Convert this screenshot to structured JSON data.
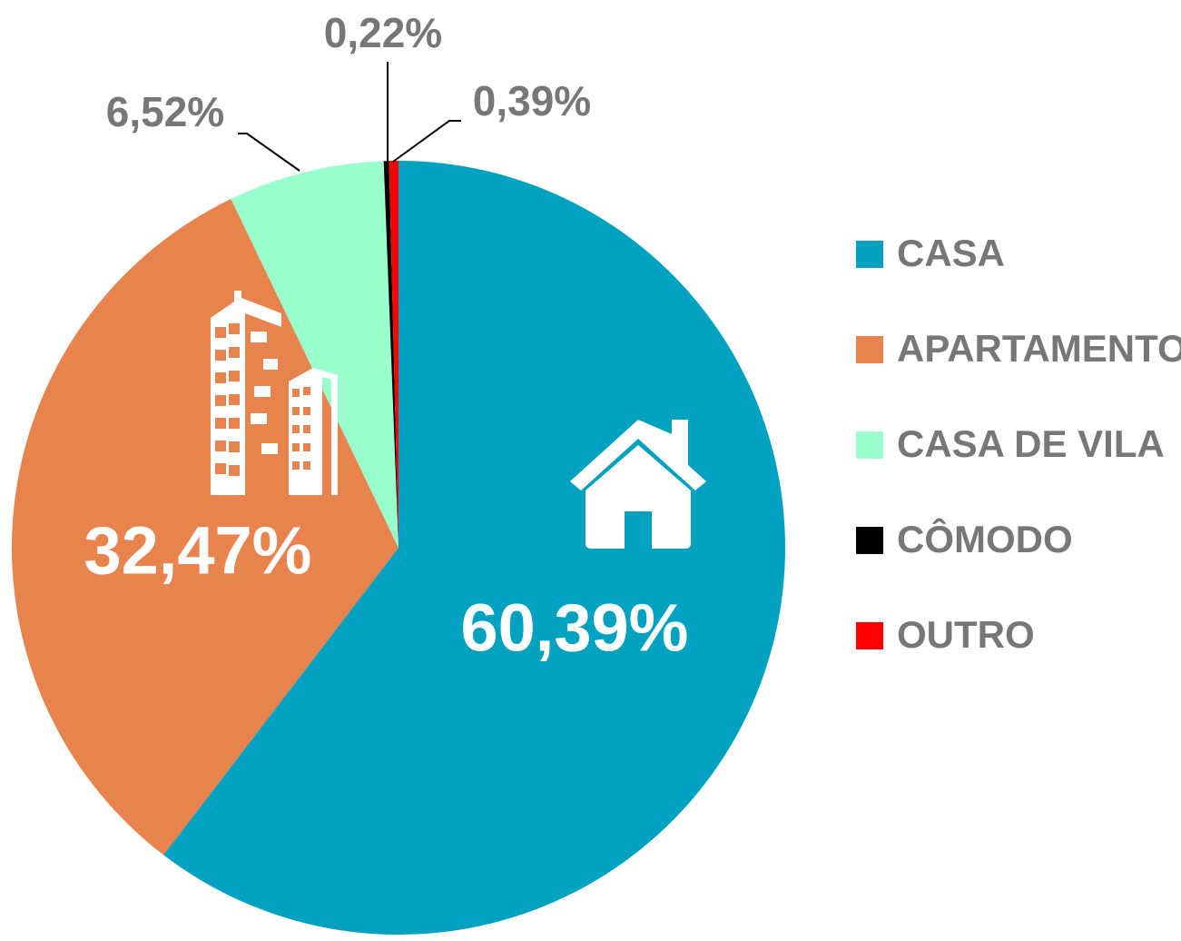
{
  "chart_data": {
    "type": "pie",
    "categories": [
      "CASA",
      "APARTAMENTO",
      "CASA DE VILA",
      "CÔMODO",
      "OUTRO"
    ],
    "values": [
      60.39,
      32.47,
      6.52,
      0.22,
      0.39
    ],
    "value_labels": [
      "60,39%",
      "32,47%",
      "6,52%",
      "0,22%",
      "0,39%"
    ],
    "colors": [
      "#00a2c0",
      "#e8834e",
      "#99ffcc",
      "#000000",
      "#ff0000"
    ],
    "legend": "right"
  }
}
